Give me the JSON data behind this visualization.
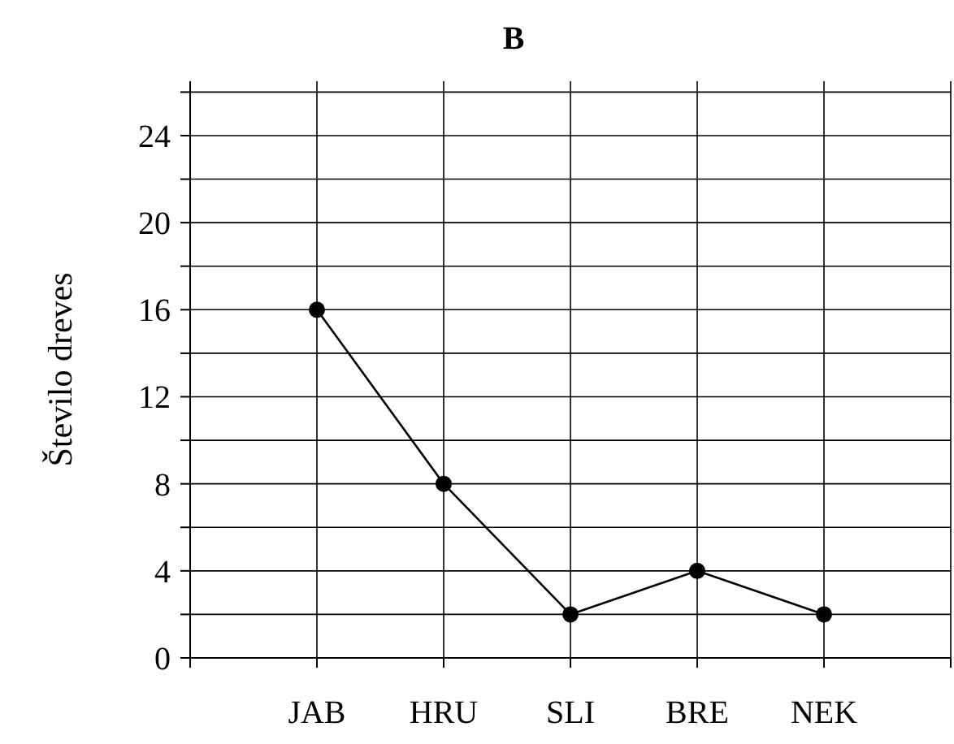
{
  "chart_data": {
    "type": "line",
    "title": "B",
    "ylabel": "Število dreves",
    "categories": [
      "JAB",
      "HRU",
      "SLI",
      "BRE",
      "NEK"
    ],
    "series": [
      {
        "color": "#000000",
        "values": [
          16,
          8,
          2,
          4,
          2
        ]
      }
    ],
    "ylim": [
      0,
      26.5
    ],
    "yticks": [
      0,
      {
        "value": 2,
        "label": null
      },
      4,
      {
        "value": 6,
        "label": null
      },
      8,
      {
        "value": 10,
        "label": null
      },
      12,
      {
        "value": 14,
        "label": null
      },
      16,
      {
        "value": 18,
        "label": null
      },
      20,
      {
        "value": 22,
        "label": null
      },
      24,
      {
        "value": 26,
        "label": null
      }
    ],
    "grid": true,
    "marker": "circle",
    "line_style": "solid"
  }
}
